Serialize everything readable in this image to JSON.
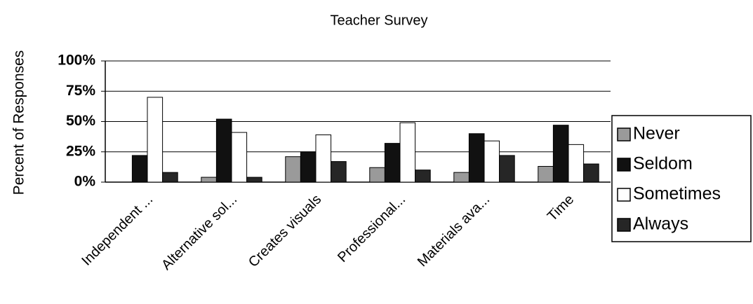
{
  "chart_data": {
    "type": "bar",
    "title": "Teacher Survey",
    "ylabel": "Percent of Responses",
    "categories": [
      "Independent ...",
      "Alternative sol...",
      "Creates visuals",
      "Professional...",
      "Materials ava...",
      "Time"
    ],
    "series": [
      {
        "name": "Never",
        "color": "#9a9a9a",
        "values": [
          0,
          4,
          21,
          12,
          8,
          13
        ]
      },
      {
        "name": "Seldom",
        "color": "#111111",
        "values": [
          22,
          52,
          25,
          32,
          40,
          47
        ]
      },
      {
        "name": "Sometimes",
        "color": "#ffffff",
        "values": [
          70,
          41,
          39,
          49,
          34,
          31
        ]
      },
      {
        "name": "Always",
        "color": "#262626",
        "values": [
          8,
          4,
          17,
          10,
          22,
          15
        ]
      }
    ],
    "ylim": [
      0,
      100
    ],
    "yticks": [
      {
        "value": 0,
        "label": "0%"
      },
      {
        "value": 25,
        "label": "25%"
      },
      {
        "value": 50,
        "label": "50%"
      },
      {
        "value": 75,
        "label": "75%"
      },
      {
        "value": 100,
        "label": "100%"
      }
    ],
    "grid": true,
    "legend": "right"
  }
}
